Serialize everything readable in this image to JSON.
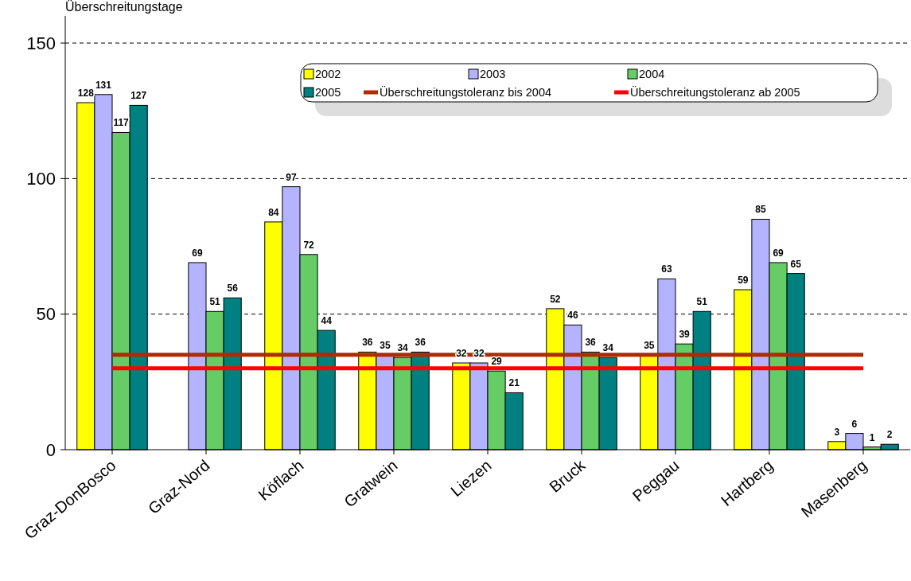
{
  "chart_data": {
    "type": "bar",
    "ylabel": "Überschreitungstage",
    "categories": [
      "Graz-DonBosco",
      "Graz-Nord",
      "Köflach",
      "Gratwein",
      "Liezen",
      "Bruck",
      "Peggau",
      "Hartberg",
      "Masenberg"
    ],
    "series": [
      {
        "name": "2002",
        "color": "#ffff00",
        "values": [
          128,
          null,
          84,
          36,
          32,
          52,
          35,
          59,
          3
        ]
      },
      {
        "name": "2003",
        "color": "#b3b3ff",
        "values": [
          131,
          69,
          97,
          35,
          32,
          46,
          63,
          85,
          6
        ]
      },
      {
        "name": "2004",
        "color": "#66cc66",
        "values": [
          117,
          51,
          72,
          34,
          29,
          36,
          39,
          69,
          1
        ]
      },
      {
        "name": "2005",
        "color": "#008080",
        "values": [
          127,
          56,
          44,
          36,
          21,
          34,
          51,
          65,
          2
        ]
      }
    ],
    "ref_lines": [
      {
        "axis": "y",
        "value": 35,
        "label": "Überschreitungstoleranz bis 2004",
        "color": "#b22a00"
      },
      {
        "axis": "y",
        "value": 30,
        "label": "Überschreitungstoleranz ab 2005",
        "color": "#ff0000"
      }
    ],
    "ylim": [
      0,
      160
    ],
    "yticks": [
      0,
      50,
      100,
      150
    ],
    "grid": "y",
    "data_labels": true,
    "legend": "top right"
  }
}
